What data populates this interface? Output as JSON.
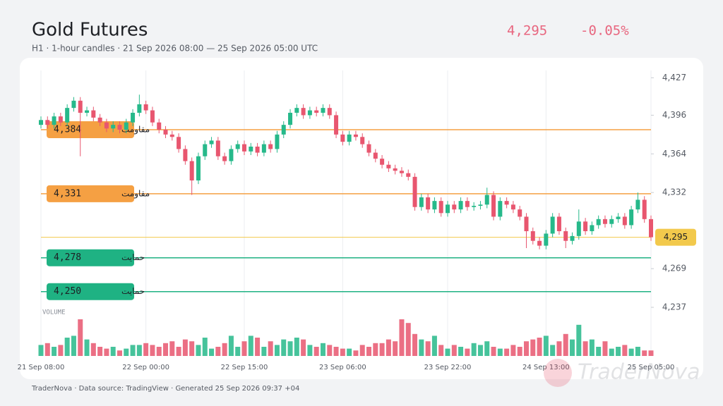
{
  "header": {
    "title": "Gold Futures",
    "subtitle": "H1 · 1-hour candles · 21 Sep 2026 08:00 — 25 Sep 2026 05:00 UTC",
    "price": "4,295",
    "change": "-0.05%"
  },
  "footer": {
    "text": "TraderNova · Data source: TradingView · Generated 25 Sep 2026 09:37 +04",
    "watermark": "TraderNova"
  },
  "chart_data": {
    "type": "candlestick",
    "up_color": "#26b98a",
    "down_color": "#e8566f",
    "ylim": [
      4237,
      4433
    ],
    "yticks": [
      {
        "value": 4237,
        "label": "4,237"
      },
      {
        "value": 4269,
        "label": "4,269"
      },
      {
        "value": 4332,
        "label": "4,332"
      },
      {
        "value": 4364,
        "label": "4,364"
      },
      {
        "value": 4396,
        "label": "4,396"
      },
      {
        "value": 4427,
        "label": "4,427"
      }
    ],
    "categories": [
      "21 Sep 08:00",
      null,
      null,
      null,
      null,
      null,
      null,
      null,
      null,
      null,
      null,
      null,
      null,
      null,
      null,
      null,
      "22 Sep 00:00",
      null,
      null,
      null,
      null,
      null,
      null,
      null,
      null,
      null,
      null,
      null,
      null,
      null,
      null,
      "22 Sep 15:00",
      null,
      null,
      null,
      null,
      null,
      null,
      null,
      null,
      null,
      null,
      null,
      null,
      null,
      null,
      "23 Sep 06:00",
      null,
      null,
      null,
      null,
      null,
      null,
      null,
      null,
      null,
      null,
      null,
      null,
      null,
      null,
      null,
      "23 Sep 22:00",
      null,
      null,
      null,
      null,
      null,
      null,
      null,
      null,
      null,
      null,
      null,
      null,
      null,
      null,
      "24 Sep 13:00",
      null,
      null,
      null,
      null,
      null,
      null,
      null,
      null,
      null,
      null,
      null,
      null,
      null,
      null,
      null,
      "25 Sep 05:00"
    ],
    "candles": [
      [
        4388,
        4395,
        4385,
        4392
      ],
      [
        4392,
        4395,
        4385,
        4388
      ],
      [
        4388,
        4398,
        4385,
        4395
      ],
      [
        4395,
        4398,
        4387,
        4390
      ],
      [
        4390,
        4405,
        4387,
        4402
      ],
      [
        4402,
        4411,
        4399,
        4408
      ],
      [
        4408,
        4411,
        4362,
        4398
      ],
      [
        4398,
        4403,
        4395,
        4400
      ],
      [
        4400,
        4403,
        4391,
        4394
      ],
      [
        4394,
        4397,
        4387,
        4390
      ],
      [
        4390,
        4393,
        4382,
        4385
      ],
      [
        4385,
        4391,
        4382,
        4388
      ],
      [
        4388,
        4391,
        4381,
        4384
      ],
      [
        4384,
        4393,
        4381,
        4390
      ],
      [
        4390,
        4401,
        4387,
        4398
      ],
      [
        4398,
        4413,
        4395,
        4405
      ],
      [
        4405,
        4408,
        4397,
        4400
      ],
      [
        4400,
        4403,
        4387,
        4390
      ],
      [
        4390,
        4393,
        4381,
        4384
      ],
      [
        4384,
        4387,
        4377,
        4380
      ],
      [
        4380,
        4383,
        4375,
        4378
      ],
      [
        4378,
        4381,
        4365,
        4368
      ],
      [
        4368,
        4371,
        4355,
        4358
      ],
      [
        4358,
        4361,
        4330,
        4342
      ],
      [
        4342,
        4365,
        4339,
        4362
      ],
      [
        4362,
        4375,
        4359,
        4372
      ],
      [
        4372,
        4378,
        4369,
        4375
      ],
      [
        4375,
        4378,
        4359,
        4362
      ],
      [
        4362,
        4365,
        4355,
        4358
      ],
      [
        4358,
        4371,
        4355,
        4368
      ],
      [
        4368,
        4375,
        4365,
        4372
      ],
      [
        4372,
        4375,
        4363,
        4366
      ],
      [
        4366,
        4373,
        4363,
        4370
      ],
      [
        4370,
        4373,
        4362,
        4365
      ],
      [
        4365,
        4375,
        4362,
        4372
      ],
      [
        4372,
        4375,
        4365,
        4368
      ],
      [
        4368,
        4383,
        4365,
        4380
      ],
      [
        4380,
        4391,
        4377,
        4388
      ],
      [
        4388,
        4401,
        4385,
        4398
      ],
      [
        4398,
        4405,
        4395,
        4402
      ],
      [
        4402,
        4405,
        4393,
        4396
      ],
      [
        4396,
        4403,
        4393,
        4400
      ],
      [
        4400,
        4403,
        4395,
        4398
      ],
      [
        4398,
        4405,
        4395,
        4402
      ],
      [
        4402,
        4405,
        4393,
        4396
      ],
      [
        4396,
        4399,
        4377,
        4380
      ],
      [
        4380,
        4383,
        4371,
        4374
      ],
      [
        4374,
        4383,
        4371,
        4380
      ],
      [
        4380,
        4383,
        4375,
        4378
      ],
      [
        4378,
        4381,
        4369,
        4372
      ],
      [
        4372,
        4375,
        4362,
        4365
      ],
      [
        4365,
        4368,
        4357,
        4360
      ],
      [
        4360,
        4363,
        4352,
        4355
      ],
      [
        4355,
        4358,
        4349,
        4352
      ],
      [
        4352,
        4355,
        4347,
        4350
      ],
      [
        4350,
        4353,
        4345,
        4348
      ],
      [
        4348,
        4351,
        4342,
        4345
      ],
      [
        4345,
        4348,
        4317,
        4320
      ],
      [
        4320,
        4331,
        4317,
        4328
      ],
      [
        4328,
        4331,
        4315,
        4318
      ],
      [
        4318,
        4328,
        4315,
        4325
      ],
      [
        4325,
        4328,
        4312,
        4315
      ],
      [
        4315,
        4325,
        4312,
        4322
      ],
      [
        4322,
        4325,
        4315,
        4318
      ],
      [
        4318,
        4328,
        4315,
        4325
      ],
      [
        4325,
        4328,
        4317,
        4320
      ],
      [
        4320,
        4324,
        4317,
        4321
      ],
      [
        4321,
        4325,
        4318,
        4322
      ],
      [
        4322,
        4336,
        4319,
        4330
      ],
      [
        4330,
        4333,
        4309,
        4312
      ],
      [
        4312,
        4328,
        4309,
        4325
      ],
      [
        4325,
        4328,
        4319,
        4322
      ],
      [
        4322,
        4325,
        4315,
        4318
      ],
      [
        4318,
        4321,
        4309,
        4312
      ],
      [
        4312,
        4315,
        4286,
        4300
      ],
      [
        4300,
        4303,
        4289,
        4292
      ],
      [
        4292,
        4295,
        4285,
        4288
      ],
      [
        4288,
        4301,
        4285,
        4298
      ],
      [
        4298,
        4315,
        4295,
        4312
      ],
      [
        4312,
        4315,
        4297,
        4300
      ],
      [
        4300,
        4303,
        4286,
        4292
      ],
      [
        4292,
        4299,
        4289,
        4296
      ],
      [
        4296,
        4318,
        4293,
        4308
      ],
      [
        4308,
        4311,
        4297,
        4300
      ],
      [
        4300,
        4308,
        4297,
        4305
      ],
      [
        4305,
        4313,
        4302,
        4310
      ],
      [
        4310,
        4313,
        4303,
        4306
      ],
      [
        4306,
        4313,
        4303,
        4310
      ],
      [
        4310,
        4315,
        4307,
        4312
      ],
      [
        4312,
        4315,
        4302,
        4305
      ],
      [
        4305,
        4321,
        4302,
        4318
      ],
      [
        4318,
        4332,
        4315,
        4326
      ],
      [
        4326,
        4329,
        4307,
        4310
      ],
      [
        4310,
        4313,
        4292,
        4295
      ]
    ],
    "volume_label": "VOLUME",
    "volume": [
      30,
      35,
      25,
      30,
      50,
      55,
      100,
      45,
      35,
      25,
      20,
      25,
      15,
      20,
      30,
      30,
      35,
      30,
      25,
      35,
      40,
      25,
      45,
      40,
      30,
      50,
      20,
      25,
      35,
      55,
      25,
      40,
      55,
      50,
      25,
      40,
      30,
      45,
      40,
      50,
      45,
      30,
      25,
      35,
      30,
      25,
      20,
      20,
      15,
      30,
      25,
      35,
      35,
      45,
      40,
      100,
      90,
      60,
      45,
      40,
      55,
      30,
      20,
      30,
      25,
      20,
      35,
      30,
      40,
      25,
      20,
      20,
      30,
      25,
      40,
      45,
      50,
      55,
      30,
      40,
      60,
      45,
      85,
      40,
      45,
      25,
      40,
      20,
      25,
      30,
      20,
      25,
      15,
      15
    ],
    "levels": {
      "values": [
        4384,
        4331,
        4278,
        4250
      ],
      "value_labels": [
        "4,384",
        "4,331",
        "4,278",
        "4,250"
      ],
      "labels": [
        "مقاومت",
        "مقاومت",
        "حمایت",
        "حمایت"
      ],
      "colors": [
        "#f5a043",
        "#f5a043",
        "#1fb283",
        "#1fb283"
      ]
    },
    "last": {
      "value": 4295,
      "value_label": "4,295",
      "color": "#f2c94c"
    }
  }
}
